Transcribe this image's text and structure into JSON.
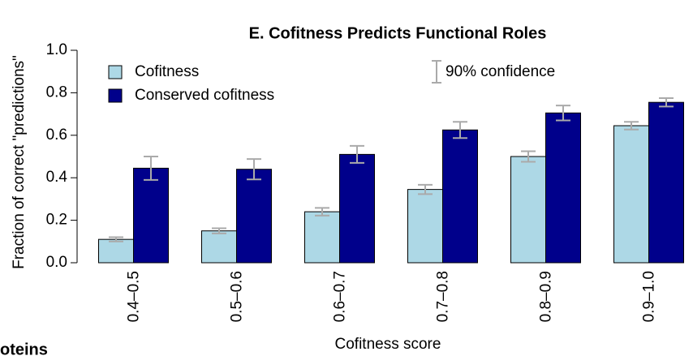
{
  "chart_data": {
    "type": "bar",
    "title": "E. Cofitness Predicts Functional Roles",
    "x_label": "Cofitness score",
    "y_label": "Fraction of correct \"predictions\"",
    "error_label": "90% confidence",
    "error_color": "#aaaaaa",
    "fragment": "oteins",
    "categories": [
      "0.4–0.5",
      "0.5–0.6",
      "0.6–0.7",
      "0.7–0.8",
      "0.8–0.9",
      "0.9–1.0"
    ],
    "series": [
      {
        "name": "Cofitness",
        "color": "#add8e6",
        "values": [
          0.11,
          0.15,
          0.24,
          0.345,
          0.5,
          0.645
        ],
        "errors": [
          0.01,
          0.012,
          0.018,
          0.022,
          0.025,
          0.018
        ]
      },
      {
        "name": "Conserved cofitness",
        "color": "#00008b",
        "values": [
          0.445,
          0.44,
          0.51,
          0.625,
          0.705,
          0.755
        ],
        "errors": [
          0.055,
          0.048,
          0.04,
          0.038,
          0.035,
          0.02
        ]
      }
    ],
    "ylim": [
      0,
      1
    ],
    "yticks": [
      {
        "value": 0,
        "label": "0.0"
      },
      0.2,
      0.4,
      0.6,
      0.8,
      {
        "value": 1,
        "label": "1.0"
      }
    ],
    "legend": "top-left"
  }
}
